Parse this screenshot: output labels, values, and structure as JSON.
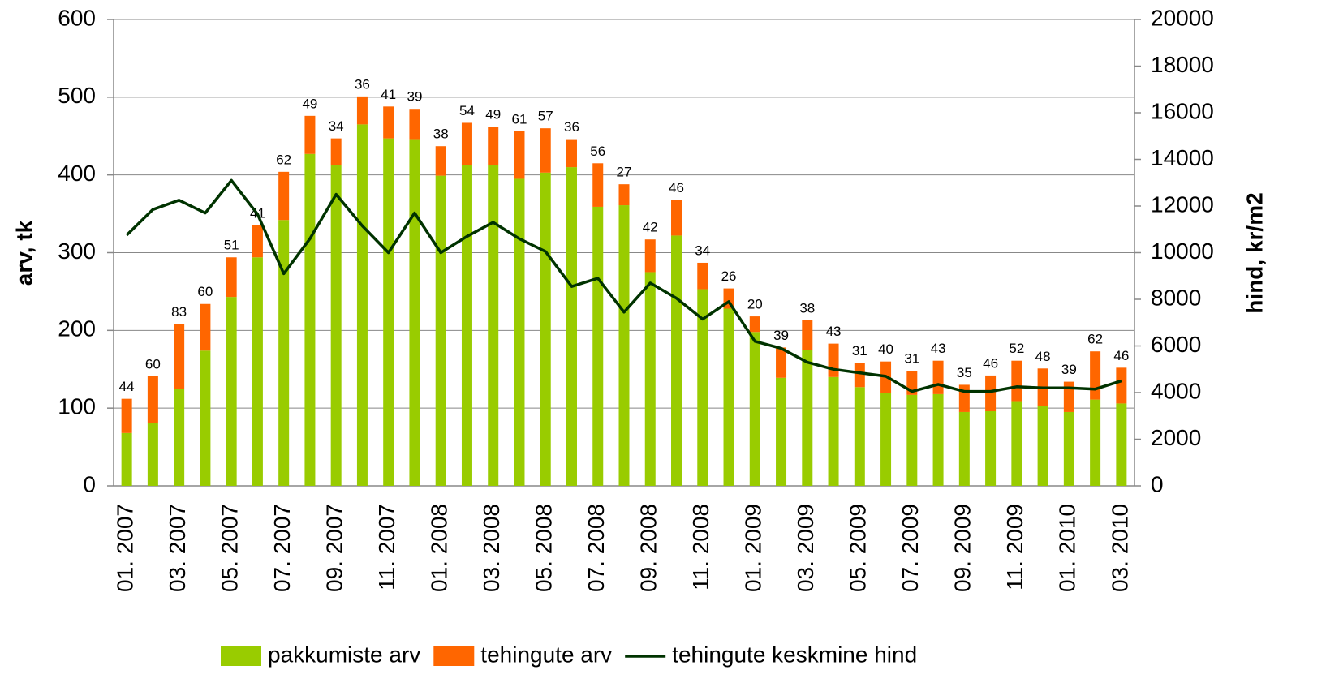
{
  "chart_data": {
    "type": "bar",
    "stacked": true,
    "categories": [
      "01. 2007",
      null,
      "03. 2007",
      null,
      "05. 2007",
      null,
      "07. 2007",
      null,
      "09. 2007",
      null,
      "11. 2007",
      null,
      "01. 2008",
      null,
      "03. 2008",
      null,
      "05. 2008",
      null,
      "07. 2008",
      null,
      "09. 2008",
      null,
      "11. 2008",
      null,
      "01. 2009",
      null,
      "03. 2009",
      null,
      "05. 2009",
      null,
      "07. 2009",
      null,
      "09. 2009",
      null,
      "11. 2009",
      null,
      "01. 2010",
      null,
      "03. 2010"
    ],
    "series": [
      {
        "name": "pakkumiste arv",
        "color": "#99cc00",
        "type": "bar",
        "values": [
          68,
          81,
          125,
          174,
          243,
          294,
          342,
          427,
          413,
          465,
          447,
          446,
          399,
          413,
          413,
          395,
          403,
          410,
          359,
          361,
          275,
          322,
          253,
          228,
          198,
          139,
          175,
          140,
          127,
          120,
          117,
          118,
          95,
          96,
          109,
          103,
          95,
          111,
          106
        ]
      },
      {
        "name": "tehingute arv",
        "color": "#ff6600",
        "type": "bar",
        "values": [
          44,
          60,
          83,
          60,
          51,
          41,
          62,
          49,
          34,
          36,
          41,
          39,
          38,
          54,
          49,
          61,
          57,
          36,
          56,
          27,
          42,
          46,
          34,
          26,
          20,
          39,
          38,
          43,
          31,
          40,
          31,
          43,
          35,
          46,
          52,
          48,
          39,
          62,
          46
        ]
      },
      {
        "name": "tehingute keskmine hind",
        "color": "#003300",
        "type": "line",
        "axis": "y2",
        "values": [
          10750,
          11850,
          12250,
          11700,
          13100,
          11650,
          9100,
          10600,
          12500,
          11150,
          10000,
          11700,
          10000,
          10700,
          11300,
          10600,
          10050,
          8550,
          8900,
          7450,
          8700,
          8050,
          7150,
          7900,
          6200,
          5900,
          5300,
          5000,
          4850,
          4700,
          4050,
          4350,
          4050,
          4050,
          4250,
          4200,
          4200,
          4150,
          4500
        ]
      }
    ],
    "ylabel": "arv, tk",
    "y2label": "hind, kr/m2",
    "ylim": [
      0,
      600
    ],
    "yticks": [
      0,
      100,
      200,
      300,
      400,
      500,
      600
    ],
    "y2lim": [
      0,
      20000
    ],
    "y2ticks": [
      0,
      2000,
      4000,
      6000,
      8000,
      10000,
      12000,
      14000,
      16000,
      18000,
      20000
    ],
    "grid": true,
    "legend": "bottom"
  }
}
